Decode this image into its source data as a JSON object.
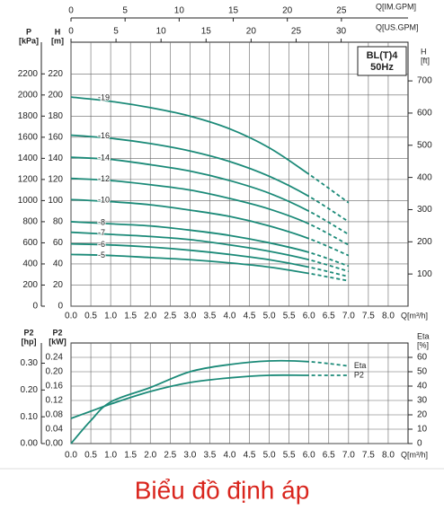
{
  "chart_data": [
    {
      "type": "line",
      "box_text": [
        "BL(T)4",
        "50Hz"
      ],
      "xlabel": "Q[m³/h]",
      "xlim": [
        0,
        8.5
      ],
      "xticks": [
        {
          "value": 0,
          "label": "0.0"
        },
        {
          "value": 0.5,
          "label": "0.5"
        },
        {
          "value": 1,
          "label": "1.0"
        },
        {
          "value": 1.5,
          "label": "1.5"
        },
        {
          "value": 2,
          "label": "2.0"
        },
        {
          "value": 2.5,
          "label": "2.5"
        },
        {
          "value": 3,
          "label": "3.0"
        },
        {
          "value": 3.5,
          "label": "3.5"
        },
        {
          "value": 4,
          "label": "4.0"
        },
        {
          "value": 4.5,
          "label": "4.5"
        },
        {
          "value": 5,
          "label": "5.0"
        },
        {
          "value": 5.5,
          "label": "5.5"
        },
        {
          "value": 6,
          "label": "6.0"
        },
        {
          "value": 6.5,
          "label": "6.5"
        },
        {
          "value": 7,
          "label": "7.0"
        },
        {
          "value": 7.5,
          "label": "7.5"
        },
        {
          "value": 8,
          "label": "8.0"
        }
      ],
      "ylabel": [
        "H",
        "[m]"
      ],
      "ylim": [
        0,
        250
      ],
      "yticks": [
        0,
        20,
        40,
        60,
        80,
        100,
        120,
        140,
        160,
        180,
        200,
        220
      ],
      "outer_axis": {
        "label": [
          "P",
          "[kPa]"
        ],
        "lim": [
          0,
          2500
        ],
        "ticks": [
          0,
          200,
          400,
          600,
          800,
          1000,
          1200,
          1400,
          1600,
          1800,
          2000,
          2200
        ]
      },
      "y2label": [
        "H",
        "[ft]"
      ],
      "y2lim": [
        0,
        820.2
      ],
      "y2ticks": [
        100,
        200,
        300,
        400,
        500,
        600,
        700
      ],
      "top_axes": [
        {
          "label": "Q[IM.GPM]",
          "lim": [
            0,
            31.16
          ],
          "ticks": [
            0,
            5,
            10,
            15,
            20,
            25
          ]
        },
        {
          "label": "Q[US.GPM]",
          "lim": [
            0,
            37.43
          ],
          "ticks": [
            0,
            5,
            10,
            15,
            20,
            25,
            30
          ]
        }
      ],
      "grid": true,
      "dashed_from": 6,
      "color": "#1b8a78",
      "x": [
        0,
        1,
        2,
        3,
        4,
        5,
        6,
        7
      ],
      "series": [
        {
          "name": "-19",
          "values": [
            198,
            194,
            188,
            180,
            168,
            150,
            125,
            98
          ]
        },
        {
          "name": "-16",
          "values": [
            162,
            159,
            154,
            147,
            137,
            123,
            104,
            80
          ]
        },
        {
          "name": "-14",
          "values": [
            141,
            139,
            134,
            128,
            119,
            107,
            90,
            68
          ]
        },
        {
          "name": "-12",
          "values": [
            121,
            119,
            115,
            110,
            102,
            92,
            78,
            58
          ]
        },
        {
          "name": "-10",
          "values": [
            101,
            99,
            96,
            91,
            85,
            76,
            64,
            48
          ]
        },
        {
          "name": "-8",
          "values": [
            80,
            78,
            76,
            72,
            67,
            60,
            51,
            38
          ]
        },
        {
          "name": "-7",
          "values": [
            70,
            68,
            66,
            63,
            58,
            52,
            44,
            33
          ]
        },
        {
          "name": "-6",
          "values": [
            59,
            58,
            56,
            53,
            49,
            44,
            37,
            28
          ]
        },
        {
          "name": "-5",
          "values": [
            49,
            48,
            46,
            44,
            41,
            37,
            31,
            24
          ]
        }
      ]
    },
    {
      "type": "line",
      "xlabel": "Q[m³/h]",
      "xlim": [
        0,
        8.5
      ],
      "xticks": [
        {
          "value": 0,
          "label": "0.0"
        },
        {
          "value": 0.5,
          "label": "0.5"
        },
        {
          "value": 1,
          "label": "1.0"
        },
        {
          "value": 1.5,
          "label": "1.5"
        },
        {
          "value": 2,
          "label": "2.0"
        },
        {
          "value": 2.5,
          "label": "2.5"
        },
        {
          "value": 3,
          "label": "3.0"
        },
        {
          "value": 3.5,
          "label": "3.5"
        },
        {
          "value": 4,
          "label": "4.0"
        },
        {
          "value": 4.5,
          "label": "4.5"
        },
        {
          "value": 5,
          "label": "5.0"
        },
        {
          "value": 5.5,
          "label": "5.5"
        },
        {
          "value": 6,
          "label": "6.0"
        },
        {
          "value": 6.5,
          "label": "6.5"
        },
        {
          "value": 7,
          "label": "7.0"
        },
        {
          "value": 7.5,
          "label": "7.5"
        },
        {
          "value": 8,
          "label": "8.0"
        }
      ],
      "ylabel": [
        "P2",
        "[kW]"
      ],
      "ylim": [
        0,
        0.28
      ],
      "yticks": [
        {
          "value": 0,
          "label": "0.00"
        },
        {
          "value": 0.04,
          "label": "0.04"
        },
        {
          "value": 0.08,
          "label": "0.08"
        },
        {
          "value": 0.12,
          "label": "0.12"
        },
        {
          "value": 0.16,
          "label": "0.16"
        },
        {
          "value": 0.2,
          "label": "0.20"
        },
        {
          "value": 0.24,
          "label": "0.24"
        }
      ],
      "outer_axis": {
        "label": [
          "P2",
          "[hp]"
        ],
        "lim": [
          0,
          0.3755
        ],
        "ticks": [
          {
            "value": 0,
            "label": "0.00"
          },
          {
            "value": 0.1,
            "label": "0.10"
          },
          {
            "value": 0.2,
            "label": "0.20"
          },
          {
            "value": 0.3,
            "label": "0.30"
          }
        ]
      },
      "y2label": [
        "Eta",
        "[%]"
      ],
      "y2lim": [
        0,
        70
      ],
      "y2ticks": [
        0,
        10,
        20,
        30,
        40,
        50,
        60
      ],
      "grid": true,
      "dashed_from": 6,
      "color": "#1b8a78",
      "x": [
        0,
        0.5,
        1,
        2,
        3,
        4,
        5,
        6,
        7
      ],
      "series": [
        {
          "name": "Eta",
          "axis": "y2",
          "values": [
            0,
            16,
            29,
            39,
            50,
            55,
            57.5,
            57,
            54
          ]
        },
        {
          "name": "P2",
          "values": [
            0.07,
            0.09,
            0.11,
            0.145,
            0.17,
            0.183,
            0.19,
            0.19,
            0.19
          ]
        }
      ]
    }
  ],
  "caption": "Biểu đồ định áp"
}
